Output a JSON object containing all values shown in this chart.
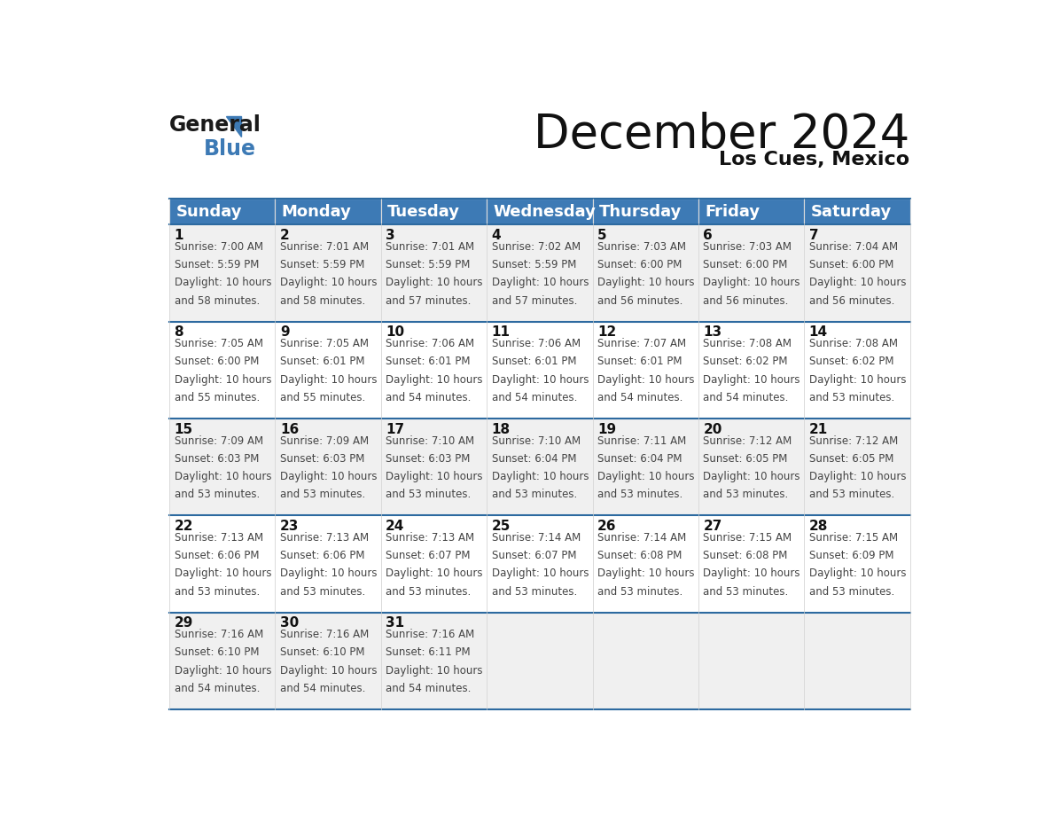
{
  "title": "December 2024",
  "subtitle": "Los Cues, Mexico",
  "header_color": "#3d7ab5",
  "header_text_color": "#ffffff",
  "days_of_week": [
    "Sunday",
    "Monday",
    "Tuesday",
    "Wednesday",
    "Thursday",
    "Friday",
    "Saturday"
  ],
  "bg_color_odd": "#f0f0f0",
  "bg_color_even": "#ffffff",
  "cell_text_color": "#444444",
  "day_num_color": "#111111",
  "border_color": "#2d6aa0",
  "calendar": [
    [
      {
        "day": 1,
        "sunrise": "7:00 AM",
        "sunset": "5:59 PM",
        "daylight_hours": 10,
        "daylight_minutes": 58
      },
      {
        "day": 2,
        "sunrise": "7:01 AM",
        "sunset": "5:59 PM",
        "daylight_hours": 10,
        "daylight_minutes": 58
      },
      {
        "day": 3,
        "sunrise": "7:01 AM",
        "sunset": "5:59 PM",
        "daylight_hours": 10,
        "daylight_minutes": 57
      },
      {
        "day": 4,
        "sunrise": "7:02 AM",
        "sunset": "5:59 PM",
        "daylight_hours": 10,
        "daylight_minutes": 57
      },
      {
        "day": 5,
        "sunrise": "7:03 AM",
        "sunset": "6:00 PM",
        "daylight_hours": 10,
        "daylight_minutes": 56
      },
      {
        "day": 6,
        "sunrise": "7:03 AM",
        "sunset": "6:00 PM",
        "daylight_hours": 10,
        "daylight_minutes": 56
      },
      {
        "day": 7,
        "sunrise": "7:04 AM",
        "sunset": "6:00 PM",
        "daylight_hours": 10,
        "daylight_minutes": 56
      }
    ],
    [
      {
        "day": 8,
        "sunrise": "7:05 AM",
        "sunset": "6:00 PM",
        "daylight_hours": 10,
        "daylight_minutes": 55
      },
      {
        "day": 9,
        "sunrise": "7:05 AM",
        "sunset": "6:01 PM",
        "daylight_hours": 10,
        "daylight_minutes": 55
      },
      {
        "day": 10,
        "sunrise": "7:06 AM",
        "sunset": "6:01 PM",
        "daylight_hours": 10,
        "daylight_minutes": 54
      },
      {
        "day": 11,
        "sunrise": "7:06 AM",
        "sunset": "6:01 PM",
        "daylight_hours": 10,
        "daylight_minutes": 54
      },
      {
        "day": 12,
        "sunrise": "7:07 AM",
        "sunset": "6:01 PM",
        "daylight_hours": 10,
        "daylight_minutes": 54
      },
      {
        "day": 13,
        "sunrise": "7:08 AM",
        "sunset": "6:02 PM",
        "daylight_hours": 10,
        "daylight_minutes": 54
      },
      {
        "day": 14,
        "sunrise": "7:08 AM",
        "sunset": "6:02 PM",
        "daylight_hours": 10,
        "daylight_minutes": 53
      }
    ],
    [
      {
        "day": 15,
        "sunrise": "7:09 AM",
        "sunset": "6:03 PM",
        "daylight_hours": 10,
        "daylight_minutes": 53
      },
      {
        "day": 16,
        "sunrise": "7:09 AM",
        "sunset": "6:03 PM",
        "daylight_hours": 10,
        "daylight_minutes": 53
      },
      {
        "day": 17,
        "sunrise": "7:10 AM",
        "sunset": "6:03 PM",
        "daylight_hours": 10,
        "daylight_minutes": 53
      },
      {
        "day": 18,
        "sunrise": "7:10 AM",
        "sunset": "6:04 PM",
        "daylight_hours": 10,
        "daylight_minutes": 53
      },
      {
        "day": 19,
        "sunrise": "7:11 AM",
        "sunset": "6:04 PM",
        "daylight_hours": 10,
        "daylight_minutes": 53
      },
      {
        "day": 20,
        "sunrise": "7:12 AM",
        "sunset": "6:05 PM",
        "daylight_hours": 10,
        "daylight_minutes": 53
      },
      {
        "day": 21,
        "sunrise": "7:12 AM",
        "sunset": "6:05 PM",
        "daylight_hours": 10,
        "daylight_minutes": 53
      }
    ],
    [
      {
        "day": 22,
        "sunrise": "7:13 AM",
        "sunset": "6:06 PM",
        "daylight_hours": 10,
        "daylight_minutes": 53
      },
      {
        "day": 23,
        "sunrise": "7:13 AM",
        "sunset": "6:06 PM",
        "daylight_hours": 10,
        "daylight_minutes": 53
      },
      {
        "day": 24,
        "sunrise": "7:13 AM",
        "sunset": "6:07 PM",
        "daylight_hours": 10,
        "daylight_minutes": 53
      },
      {
        "day": 25,
        "sunrise": "7:14 AM",
        "sunset": "6:07 PM",
        "daylight_hours": 10,
        "daylight_minutes": 53
      },
      {
        "day": 26,
        "sunrise": "7:14 AM",
        "sunset": "6:08 PM",
        "daylight_hours": 10,
        "daylight_minutes": 53
      },
      {
        "day": 27,
        "sunrise": "7:15 AM",
        "sunset": "6:08 PM",
        "daylight_hours": 10,
        "daylight_minutes": 53
      },
      {
        "day": 28,
        "sunrise": "7:15 AM",
        "sunset": "6:09 PM",
        "daylight_hours": 10,
        "daylight_minutes": 53
      }
    ],
    [
      {
        "day": 29,
        "sunrise": "7:16 AM",
        "sunset": "6:10 PM",
        "daylight_hours": 10,
        "daylight_minutes": 54
      },
      {
        "day": 30,
        "sunrise": "7:16 AM",
        "sunset": "6:10 PM",
        "daylight_hours": 10,
        "daylight_minutes": 54
      },
      {
        "day": 31,
        "sunrise": "7:16 AM",
        "sunset": "6:11 PM",
        "daylight_hours": 10,
        "daylight_minutes": 54
      },
      null,
      null,
      null,
      null
    ]
  ],
  "logo_text_general": "General",
  "logo_text_blue": "Blue",
  "logo_triangle_color": "#3d7ab5",
  "font_size_title": 38,
  "font_size_subtitle": 16,
  "font_size_header": 13,
  "font_size_day_num": 11,
  "font_size_cell_text": 8.5
}
